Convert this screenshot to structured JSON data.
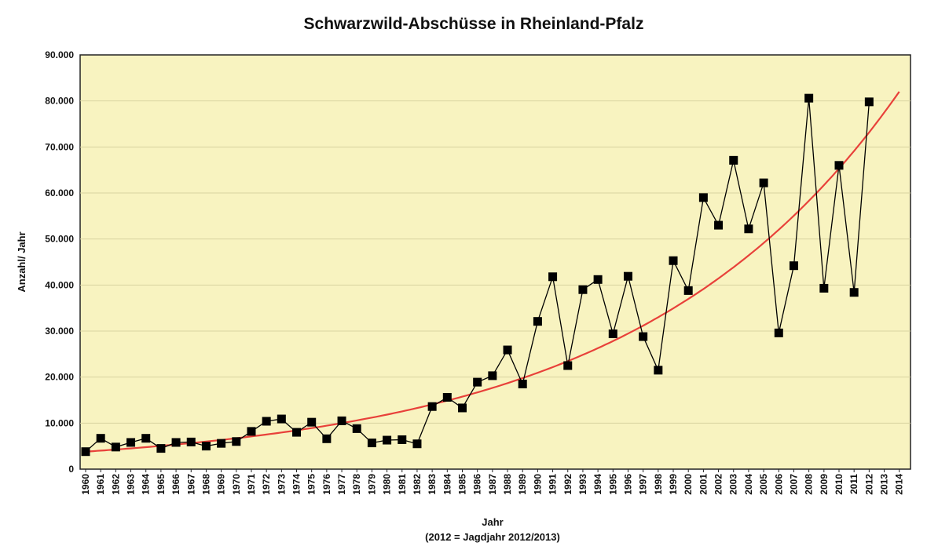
{
  "chart_data": {
    "type": "line",
    "title": "Schwarzwild-Abschüsse in Rheinland-Pfalz",
    "xlabel": "Jahr",
    "xlabel_note": "(2012 = Jagdjahr 2012/2013)",
    "ylabel": "Anzahl/ Jahr",
    "ylim": [
      0,
      90000
    ],
    "y_ticks": [
      "0",
      "10.000",
      "20.000",
      "30.000",
      "40.000",
      "50.000",
      "60.000",
      "70.000",
      "80.000",
      "90.000"
    ],
    "categories": [
      "1960",
      "1961",
      "1962",
      "1963",
      "1964",
      "1965",
      "1966",
      "1967",
      "1968",
      "1969",
      "1970",
      "1971",
      "1972",
      "1973",
      "1974",
      "1975",
      "1976",
      "1977",
      "1978",
      "1979",
      "1980",
      "1981",
      "1982",
      "1983",
      "1984",
      "1985",
      "1986",
      "1987",
      "1988",
      "1989",
      "1990",
      "1991",
      "1992",
      "1993",
      "1994",
      "1995",
      "1996",
      "1997",
      "1998",
      "1999",
      "2000",
      "2001",
      "2002",
      "2003",
      "2004",
      "2005",
      "2006",
      "2007",
      "2008",
      "2009",
      "2010",
      "2011",
      "2012",
      "2013",
      "2014"
    ],
    "series": [
      {
        "values": [
          3800,
          6700,
          4800,
          5800,
          6700,
          4500,
          5800,
          5900,
          5000,
          5600,
          6000,
          8200,
          10400,
          10900,
          8000,
          10200,
          6600,
          10500,
          8800,
          5700,
          6300,
          6400,
          5500,
          13600,
          15600,
          13300,
          18900,
          20300,
          25900,
          18500,
          32100,
          41800,
          22500,
          39000,
          41200,
          29400,
          41900,
          28800,
          21500,
          45300,
          38800,
          59000,
          53000,
          67100,
          52200,
          62200,
          29600,
          44200,
          80600,
          39300,
          66000,
          38400,
          79800,
          null,
          null
        ],
        "color": "#000000",
        "marker": "square"
      }
    ],
    "trend": {
      "type": "exponential",
      "color": "#e8413a",
      "x": [
        1960,
        2014
      ],
      "y": [
        3800,
        82000
      ]
    },
    "grid": true,
    "plot_background": "#f8f3c0",
    "legend": "none"
  }
}
